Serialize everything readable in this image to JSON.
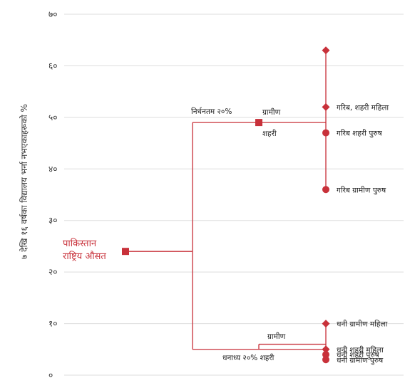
{
  "colors": {
    "accent": "#c8313a",
    "grid": "#dddddd",
    "text": "#222222"
  },
  "chart_data": {
    "type": "scatter",
    "ylabel": "७ देखि १६ वर्षका विद्यालय भर्ना नभएकाहरूको %",
    "ylim": [
      0,
      70
    ],
    "yticks": [
      "०",
      "१०",
      "२०",
      "३०",
      "४०",
      "५०",
      "६०",
      "७०"
    ],
    "national": {
      "label_line1": "पाकिस्तान",
      "label_line2": "राष्ट्रिय औसत",
      "value": 24
    },
    "poorest": {
      "label": "निर्धनतम २०%",
      "value": 49,
      "rural_label": "ग्रामीण",
      "urban_label": "शहरी",
      "points": [
        {
          "label": "",
          "value": 63,
          "marker": "diamond"
        },
        {
          "label": "गरिब, शहरी महिला",
          "value": 52,
          "marker": "diamond"
        },
        {
          "label": "गरिब शहरी पुरुष",
          "value": 47,
          "marker": "circle"
        },
        {
          "label": "गरिब ग्रामीण पुरुष",
          "value": 36,
          "marker": "circle"
        }
      ]
    },
    "richest": {
      "label": "धनाध्य २०% शहरी",
      "value": 5,
      "rural_label": "ग्रामीण",
      "rural_value": 6,
      "points": [
        {
          "label": "धनी ग्रामीण महिला",
          "value": 10,
          "marker": "diamond"
        },
        {
          "label": "धनी शहरी महिला",
          "value": 5,
          "marker": "diamond"
        },
        {
          "label": "धनी शहरी  पुरुष",
          "value": 4,
          "marker": "circle"
        },
        {
          "label": "धनी ग्रामीण पुरुष",
          "value": 3,
          "marker": "circle"
        }
      ]
    }
  }
}
